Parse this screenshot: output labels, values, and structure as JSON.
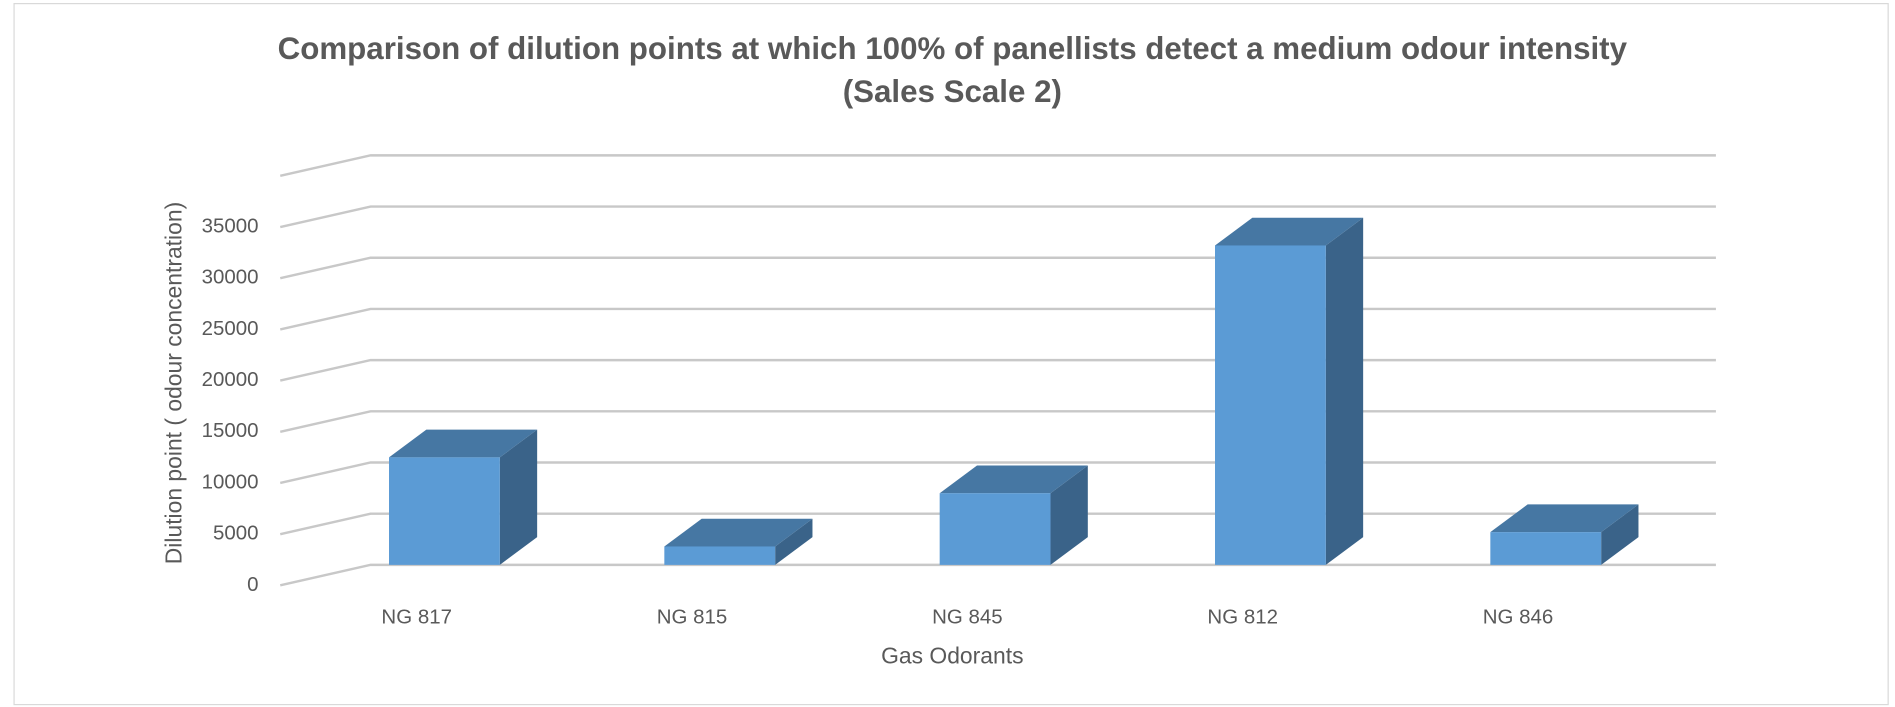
{
  "chart_data": {
    "type": "bar3d",
    "title": "Comparison of dilution points at which 100% of panellists detect a medium odour intensity",
    "subtitle": "(Sales Scale 2)",
    "x_label": "Gas Odorants",
    "y_label": "Dilution point ( odour concentration)",
    "categories": [
      "NG 817",
      "NG 815",
      "NG 845",
      "NG 812",
      "NG 846"
    ],
    "values": [
      10500,
      1800,
      7000,
      31200,
      3200
    ],
    "color": "#5b9bd5",
    "ylim": [
      0,
      40000
    ],
    "yticks": [
      0,
      5000,
      10000,
      15000,
      20000,
      25000,
      30000,
      35000
    ],
    "grid": true
  }
}
